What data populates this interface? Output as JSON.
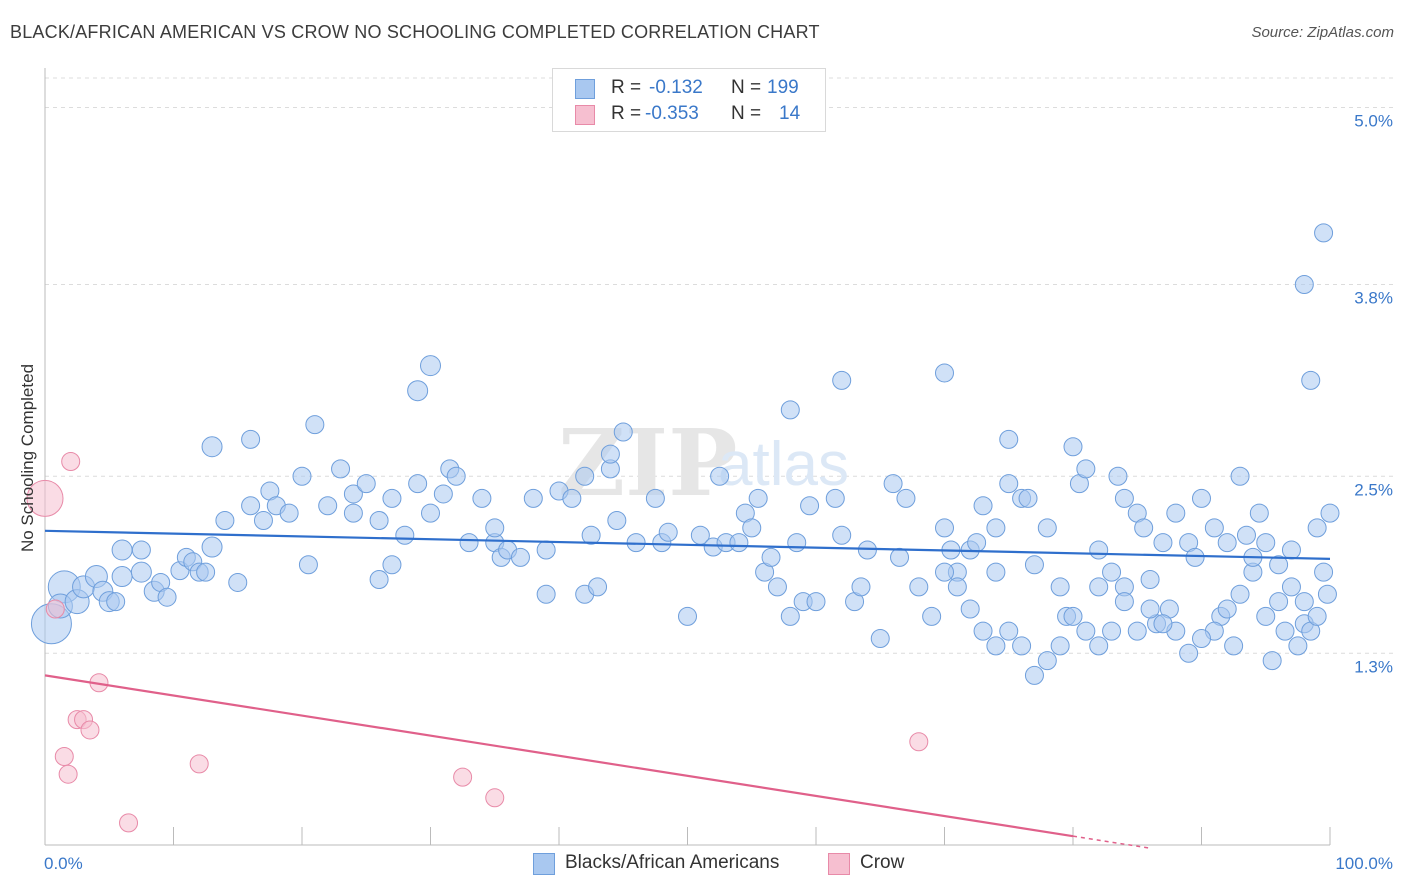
{
  "header": {
    "title": "BLACK/AFRICAN AMERICAN VS CROW NO SCHOOLING COMPLETED CORRELATION CHART",
    "source": "Source: ZipAtlas.com"
  },
  "legend_top": {
    "rows": [
      {
        "r_label": "R =",
        "r_value": "-0.132",
        "n_label": "N =",
        "n_value": "199"
      },
      {
        "r_label": "R =",
        "r_value": "-0.353",
        "n_label": "N =",
        "n_value": "14"
      }
    ]
  },
  "legend_bottom": {
    "items": [
      {
        "label": "Blacks/African Americans"
      },
      {
        "label": "Crow"
      }
    ]
  },
  "colors": {
    "blue_fill": "#a9c8f0",
    "blue_stroke": "#6f9fdc",
    "blue_line": "#2f6fcc",
    "pink_fill": "#f6bfd0",
    "pink_stroke": "#e88aa8",
    "pink_line": "#e0608a",
    "tick_text": "#3a78c9",
    "grid": "#dcdcdc"
  },
  "chart_data": {
    "type": "scatter",
    "title": "BLACK/AFRICAN AMERICAN VS CROW NO SCHOOLING COMPLETED CORRELATION CHART",
    "ylabel": "No Schooling Completed",
    "xlabel": "",
    "xlim": [
      0,
      100
    ],
    "ylim": [
      0,
      5.2
    ],
    "x_tick_labels": [
      "0.0%",
      "100.0%"
    ],
    "y_ticks": [
      {
        "value": 1.3,
        "label": "1.3%"
      },
      {
        "value": 2.5,
        "label": "2.5%"
      },
      {
        "value": 3.8,
        "label": "3.8%"
      },
      {
        "value": 5.0,
        "label": "5.0%"
      }
    ],
    "grid": true,
    "legend_position": "top-center",
    "watermark": "ZIPatlas",
    "series": [
      {
        "name": "Blacks/African Americans",
        "color": "#a9c8f0",
        "trend": {
          "x0": 0,
          "y0": 2.13,
          "x1": 100,
          "y1": 1.94
        },
        "points": [
          [
            0.5,
            1.5,
            20
          ],
          [
            1.5,
            1.75,
            16
          ],
          [
            1.2,
            1.62,
            12
          ],
          [
            2.5,
            1.65,
            12
          ],
          [
            3,
            1.75,
            11
          ],
          [
            4,
            1.82,
            11
          ],
          [
            4.5,
            1.72,
            10
          ],
          [
            5,
            1.65,
            10
          ],
          [
            6,
            1.82,
            10
          ],
          [
            5.5,
            1.65,
            9
          ],
          [
            7.5,
            1.85,
            10
          ],
          [
            8.5,
            1.72,
            10
          ],
          [
            6,
            2,
            10
          ],
          [
            7.5,
            2,
            9
          ],
          [
            9,
            1.78,
            9
          ],
          [
            9.5,
            1.68,
            9
          ],
          [
            10.5,
            1.86,
            9
          ],
          [
            11,
            1.95,
            9
          ],
          [
            11.5,
            1.92,
            9
          ],
          [
            12,
            1.85,
            9
          ],
          [
            13,
            2.02,
            10
          ],
          [
            12.5,
            1.85,
            9
          ],
          [
            15,
            1.78,
            9
          ],
          [
            16,
            2.3,
            9
          ],
          [
            17,
            2.2,
            9
          ],
          [
            17.5,
            2.4,
            9
          ],
          [
            18,
            2.3,
            9
          ],
          [
            14,
            2.2,
            9
          ],
          [
            13,
            2.7,
            10
          ],
          [
            16,
            2.75,
            9
          ],
          [
            19,
            2.25,
            9
          ],
          [
            20,
            2.5,
            9
          ],
          [
            20.5,
            1.9,
            9
          ],
          [
            21,
            2.85,
            9
          ],
          [
            22,
            2.3,
            9
          ],
          [
            23,
            2.55,
            9
          ],
          [
            24,
            2.25,
            9
          ],
          [
            24,
            2.38,
            9
          ],
          [
            25,
            2.45,
            9
          ],
          [
            26,
            2.2,
            9
          ],
          [
            27,
            2.35,
            9
          ],
          [
            29,
            3.08,
            10
          ],
          [
            30,
            3.25,
            10
          ],
          [
            29,
            2.45,
            9
          ],
          [
            28,
            2.1,
            9
          ],
          [
            27,
            1.9,
            9
          ],
          [
            26,
            1.8,
            9
          ],
          [
            30,
            2.25,
            9
          ],
          [
            31,
            2.38,
            9
          ],
          [
            31.5,
            2.55,
            9
          ],
          [
            32,
            2.5,
            9
          ],
          [
            33,
            2.05,
            9
          ],
          [
            34,
            2.35,
            9
          ],
          [
            35,
            2.05,
            9
          ],
          [
            35.5,
            1.95,
            9
          ],
          [
            35,
            2.15,
            9
          ],
          [
            36,
            2.0,
            9
          ],
          [
            37,
            1.95,
            9
          ],
          [
            38,
            2.35,
            9
          ],
          [
            39,
            2.0,
            9
          ],
          [
            39,
            1.7,
            9
          ],
          [
            40,
            2.4,
            9
          ],
          [
            41,
            2.35,
            9
          ],
          [
            42,
            2.5,
            9
          ],
          [
            42.5,
            2.1,
            9
          ],
          [
            42,
            1.7,
            9
          ],
          [
            43,
            1.75,
            9
          ],
          [
            44,
            2.55,
            9
          ],
          [
            44.5,
            2.2,
            9
          ],
          [
            44,
            2.65,
            9
          ],
          [
            45,
            2.8,
            9
          ],
          [
            46,
            2.05,
            9
          ],
          [
            47.5,
            2.35,
            9
          ],
          [
            48,
            2.05,
            9
          ],
          [
            48.5,
            2.12,
            9
          ],
          [
            50,
            1.55,
            9
          ],
          [
            51,
            2.1,
            9
          ],
          [
            52,
            2.02,
            9
          ],
          [
            52.5,
            2.5,
            9
          ],
          [
            53,
            2.05,
            9
          ],
          [
            54,
            2.05,
            9
          ],
          [
            54.5,
            2.25,
            9
          ],
          [
            55,
            2.15,
            9
          ],
          [
            55.5,
            2.35,
            9
          ],
          [
            56,
            1.85,
            9
          ],
          [
            56.5,
            1.95,
            9
          ],
          [
            57,
            1.75,
            9
          ],
          [
            58,
            1.55,
            9
          ],
          [
            58.5,
            2.05,
            9
          ],
          [
            59,
            1.65,
            9
          ],
          [
            59.5,
            2.3,
            9
          ],
          [
            60,
            1.65,
            9
          ],
          [
            61.5,
            2.35,
            9
          ],
          [
            62,
            2.1,
            9
          ],
          [
            63,
            1.65,
            9
          ],
          [
            63.5,
            1.75,
            9
          ],
          [
            64,
            2.0,
            9
          ],
          [
            65,
            1.4,
            9
          ],
          [
            66,
            2.45,
            9
          ],
          [
            66.5,
            1.95,
            9
          ],
          [
            67,
            2.35,
            9
          ],
          [
            68,
            1.75,
            9
          ],
          [
            69,
            1.55,
            9
          ],
          [
            70,
            2.15,
            9
          ],
          [
            70.5,
            2.0,
            9
          ],
          [
            71,
            1.85,
            9
          ],
          [
            72,
            2.0,
            9
          ],
          [
            72.5,
            2.05,
            9
          ],
          [
            73,
            2.3,
            9
          ],
          [
            74,
            1.85,
            9
          ],
          [
            74,
            2.15,
            9
          ],
          [
            75,
            2.45,
            9
          ],
          [
            75,
            2.75,
            9
          ],
          [
            76,
            2.35,
            9
          ],
          [
            76.5,
            2.35,
            9
          ],
          [
            77,
            1.9,
            9
          ],
          [
            78,
            2.15,
            9
          ],
          [
            79,
            1.75,
            9
          ],
          [
            79.5,
            1.55,
            9
          ],
          [
            80,
            2.7,
            9
          ],
          [
            80.5,
            2.45,
            9
          ],
          [
            81,
            2.55,
            9
          ],
          [
            82,
            2.0,
            9
          ],
          [
            82,
            1.75,
            9
          ],
          [
            83,
            1.45,
            9
          ],
          [
            83.5,
            2.5,
            9
          ],
          [
            84,
            2.35,
            9
          ],
          [
            84,
            1.75,
            9
          ],
          [
            85,
            2.25,
            9
          ],
          [
            85.5,
            2.15,
            9
          ],
          [
            86,
            1.8,
            9
          ],
          [
            86.5,
            1.5,
            9
          ],
          [
            87,
            2.05,
            9
          ],
          [
            87.5,
            1.6,
            9
          ],
          [
            88,
            2.25,
            9
          ],
          [
            89,
            2.05,
            9
          ],
          [
            89.5,
            1.95,
            9
          ],
          [
            90,
            2.35,
            9
          ],
          [
            91,
            2.15,
            9
          ],
          [
            91.5,
            1.55,
            9
          ],
          [
            92,
            2.05,
            9
          ],
          [
            92.5,
            1.35,
            9
          ],
          [
            93,
            2.5,
            9
          ],
          [
            93.5,
            2.1,
            9
          ],
          [
            94,
            1.85,
            9
          ],
          [
            94.5,
            2.25,
            9
          ],
          [
            95,
            1.55,
            9
          ],
          [
            95.5,
            1.25,
            9
          ],
          [
            96,
            1.65,
            9
          ],
          [
            96.5,
            1.45,
            9
          ],
          [
            97,
            2.0,
            9
          ],
          [
            97.5,
            1.35,
            9
          ],
          [
            98,
            1.5,
            9
          ],
          [
            98.5,
            1.45,
            9
          ],
          [
            99,
            2.15,
            9
          ],
          [
            99.5,
            1.85,
            9
          ],
          [
            99.8,
            1.7,
            9
          ],
          [
            100,
            2.25,
            9
          ],
          [
            99,
            1.55,
            9
          ],
          [
            98,
            1.65,
            9
          ],
          [
            97,
            1.75,
            9
          ],
          [
            96,
            1.9,
            9
          ],
          [
            95,
            2.05,
            9
          ],
          [
            94,
            1.95,
            9
          ],
          [
            93,
            1.7,
            9
          ],
          [
            92,
            1.6,
            9
          ],
          [
            91,
            1.45,
            9
          ],
          [
            90,
            1.4,
            9
          ],
          [
            89,
            1.3,
            9
          ],
          [
            88,
            1.45,
            9
          ],
          [
            87,
            1.5,
            9
          ],
          [
            86,
            1.6,
            9
          ],
          [
            85,
            1.45,
            9
          ],
          [
            84,
            1.65,
            9
          ],
          [
            83,
            1.85,
            9
          ],
          [
            82,
            1.35,
            9
          ],
          [
            81,
            1.45,
            9
          ],
          [
            80,
            1.55,
            9
          ],
          [
            79,
            1.35,
            9
          ],
          [
            78,
            1.25,
            9
          ],
          [
            77,
            1.15,
            9
          ],
          [
            76,
            1.35,
            9
          ],
          [
            75,
            1.45,
            9
          ],
          [
            74,
            1.35,
            9
          ],
          [
            73,
            1.45,
            9
          ],
          [
            72,
            1.6,
            9
          ],
          [
            71,
            1.75,
            9
          ],
          [
            70,
            1.85,
            9
          ],
          [
            62,
            3.15,
            9
          ],
          [
            70,
            3.2,
            9
          ],
          [
            98.5,
            3.15,
            9
          ],
          [
            98,
            3.8,
            9
          ],
          [
            99.5,
            4.15,
            9
          ],
          [
            58,
            2.95,
            9
          ]
        ]
      },
      {
        "name": "Crow",
        "color": "#f6bfd0",
        "trend": {
          "x0": 0,
          "y0": 1.15,
          "x1": 80,
          "y1": 0.06
        },
        "points": [
          [
            0,
            2.35,
            18
          ],
          [
            0.8,
            1.6,
            9
          ],
          [
            2,
            2.6,
            9
          ],
          [
            1.5,
            0.6,
            9
          ],
          [
            1.8,
            0.48,
            9
          ],
          [
            2.5,
            0.85,
            9
          ],
          [
            3,
            0.85,
            9
          ],
          [
            3.5,
            0.78,
            9
          ],
          [
            4.2,
            1.1,
            9
          ],
          [
            6.5,
            0.15,
            9
          ],
          [
            12,
            0.55,
            9
          ],
          [
            32.5,
            0.46,
            9
          ],
          [
            35,
            0.32,
            9
          ],
          [
            68,
            0.7,
            9
          ]
        ]
      }
    ]
  }
}
